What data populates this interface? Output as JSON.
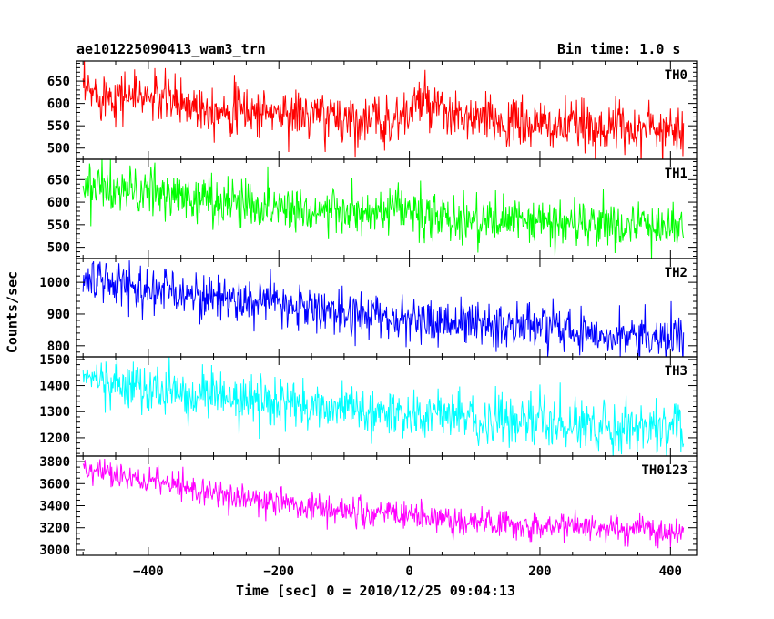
{
  "chart_data": {
    "type": "line",
    "title": "ae101225090413_wam3_trn",
    "bin_time_label": "Bin time: 1.0 s",
    "xlabel": "Time [sec] 0 = 2010/12/25 09:04:13",
    "ylabel": "Counts/sec",
    "xlim": [
      -510,
      440
    ],
    "x_ticks": [
      -400,
      -200,
      0,
      200,
      400
    ],
    "x_tick_labels": [
      "−400",
      "−200",
      "0",
      "200",
      "400"
    ],
    "x_step": 1.0,
    "x_range_data": [
      -500,
      420
    ],
    "panels": [
      {
        "name": "TH0",
        "color": "#ff0000",
        "ylim": [
          475,
          695
        ],
        "y_ticks": [
          500,
          550,
          600,
          650
        ],
        "y_tick_labels": [
          "500",
          "550",
          "600",
          "650"
        ],
        "trend": [
          [
            -500,
            625
          ],
          [
            -400,
            615
          ],
          [
            -300,
            590
          ],
          [
            -200,
            580
          ],
          [
            -120,
            570
          ],
          [
            -40,
            560
          ],
          [
            0,
            575
          ],
          [
            10,
            610
          ],
          [
            60,
            570
          ],
          [
            200,
            550
          ],
          [
            420,
            545
          ]
        ],
        "noise": 28
      },
      {
        "name": "TH1",
        "color": "#00ff00",
        "ylim": [
          475,
          695
        ],
        "y_ticks": [
          500,
          550,
          600,
          650
        ],
        "y_tick_labels": [
          "500",
          "550",
          "600",
          "650"
        ],
        "trend": [
          [
            -500,
            635
          ],
          [
            -400,
            620
          ],
          [
            -200,
            590
          ],
          [
            -60,
            570
          ],
          [
            0,
            585
          ],
          [
            20,
            565
          ],
          [
            200,
            555
          ],
          [
            420,
            545
          ]
        ],
        "noise": 27
      },
      {
        "name": "TH2",
        "color": "#0000ff",
        "ylim": [
          765,
          1075
        ],
        "y_ticks": [
          800,
          900,
          1000
        ],
        "y_tick_labels": [
          "800",
          "900",
          "1000"
        ],
        "trend": [
          [
            -500,
            1010
          ],
          [
            -400,
            980
          ],
          [
            -200,
            930
          ],
          [
            0,
            880
          ],
          [
            200,
            860
          ],
          [
            420,
            820
          ]
        ],
        "noise": 35
      },
      {
        "name": "TH3",
        "color": "#00ffff",
        "ylim": [
          1130,
          1510
        ],
        "y_ticks": [
          1200,
          1300,
          1400,
          1500
        ],
        "y_tick_labels": [
          "1200",
          "1300",
          "1400",
          "1500"
        ],
        "trend": [
          [
            -500,
            1430
          ],
          [
            -400,
            1385
          ],
          [
            -200,
            1330
          ],
          [
            0,
            1290
          ],
          [
            200,
            1255
          ],
          [
            420,
            1235
          ]
        ],
        "noise": 45
      },
      {
        "name": "TH0123",
        "color": "#ff00ff",
        "ylim": [
          2950,
          3850
        ],
        "y_ticks": [
          3000,
          3200,
          3400,
          3600,
          3800
        ],
        "y_tick_labels": [
          "3000",
          "3200",
          "3400",
          "3600",
          "3800"
        ],
        "trend": [
          [
            -500,
            3720
          ],
          [
            -400,
            3620
          ],
          [
            -200,
            3420
          ],
          [
            -10,
            3300
          ],
          [
            10,
            3360
          ],
          [
            30,
            3270
          ],
          [
            200,
            3230
          ],
          [
            420,
            3160
          ]
        ],
        "noise": 65
      }
    ]
  }
}
